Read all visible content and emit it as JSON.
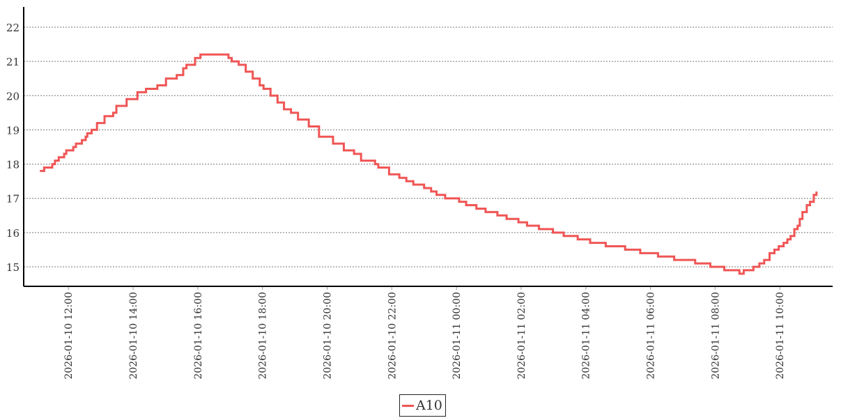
{
  "chart_data": {
    "type": "line",
    "step": true,
    "title": "",
    "xlabel": "",
    "ylabel": "",
    "xlim": [
      "2026-01-10 10:37",
      "2026-01-11 11:38"
    ],
    "ylim": [
      14.43,
      22.59
    ],
    "yticks": [
      15,
      16,
      17,
      18,
      19,
      20,
      21,
      22
    ],
    "xticks": [
      "2026-01-10 12:00",
      "2026-01-10 14:00",
      "2026-01-10 16:00",
      "2026-01-10 18:00",
      "2026-01-10 20:00",
      "2026-01-10 22:00",
      "2026-01-11 00:00",
      "2026-01-11 02:00",
      "2026-01-11 04:00",
      "2026-01-11 06:00",
      "2026-01-11 08:00",
      "2026-01-11 10:00"
    ],
    "grid": "horizontal dotted",
    "legend_position": "bottom-center",
    "series": [
      {
        "name": "A10",
        "color": "#f05555",
        "points": [
          [
            "2026-01-10 11:07",
            17.8
          ],
          [
            "2026-01-10 11:15",
            17.9
          ],
          [
            "2026-01-10 11:30",
            18.0
          ],
          [
            "2026-01-10 11:35",
            18.1
          ],
          [
            "2026-01-10 11:42",
            18.2
          ],
          [
            "2026-01-10 11:52",
            18.3
          ],
          [
            "2026-01-10 11:56",
            18.4
          ],
          [
            "2026-01-10 12:09",
            18.5
          ],
          [
            "2026-01-10 12:14",
            18.6
          ],
          [
            "2026-01-10 12:25",
            18.7
          ],
          [
            "2026-01-10 12:32",
            18.8
          ],
          [
            "2026-01-10 12:35",
            18.9
          ],
          [
            "2026-01-10 12:43",
            19.0
          ],
          [
            "2026-01-10 12:53",
            19.2
          ],
          [
            "2026-01-10 13:07",
            19.4
          ],
          [
            "2026-01-10 13:23",
            19.5
          ],
          [
            "2026-01-10 13:29",
            19.7
          ],
          [
            "2026-01-10 13:48",
            19.9
          ],
          [
            "2026-01-10 14:08",
            20.1
          ],
          [
            "2026-01-10 14:24",
            20.2
          ],
          [
            "2026-01-10 14:45",
            20.3
          ],
          [
            "2026-01-10 15:01",
            20.5
          ],
          [
            "2026-01-10 15:21",
            20.6
          ],
          [
            "2026-01-10 15:33",
            20.8
          ],
          [
            "2026-01-10 15:39",
            20.9
          ],
          [
            "2026-01-10 15:55",
            21.1
          ],
          [
            "2026-01-10 16:05",
            21.2
          ],
          [
            "2026-01-10 16:57",
            21.1
          ],
          [
            "2026-01-10 17:03",
            21.0
          ],
          [
            "2026-01-10 17:16",
            20.9
          ],
          [
            "2026-01-10 17:29",
            20.7
          ],
          [
            "2026-01-10 17:42",
            20.5
          ],
          [
            "2026-01-10 17:55",
            20.3
          ],
          [
            "2026-01-10 18:02",
            20.2
          ],
          [
            "2026-01-10 18:15",
            20.0
          ],
          [
            "2026-01-10 18:28",
            19.8
          ],
          [
            "2026-01-10 18:40",
            19.6
          ],
          [
            "2026-01-10 18:53",
            19.5
          ],
          [
            "2026-01-10 19:06",
            19.3
          ],
          [
            "2026-01-10 19:26",
            19.1
          ],
          [
            "2026-01-10 19:45",
            18.8
          ],
          [
            "2026-01-10 20:11",
            18.6
          ],
          [
            "2026-01-10 20:31",
            18.4
          ],
          [
            "2026-01-10 20:50",
            18.3
          ],
          [
            "2026-01-10 21:03",
            18.1
          ],
          [
            "2026-01-10 21:29",
            18.0
          ],
          [
            "2026-01-10 21:35",
            17.9
          ],
          [
            "2026-01-10 21:55",
            17.7
          ],
          [
            "2026-01-10 22:14",
            17.6
          ],
          [
            "2026-01-10 22:27",
            17.5
          ],
          [
            "2026-01-10 22:40",
            17.4
          ],
          [
            "2026-01-10 23:00",
            17.3
          ],
          [
            "2026-01-10 23:13",
            17.2
          ],
          [
            "2026-01-10 23:23",
            17.1
          ],
          [
            "2026-01-10 23:39",
            17.0
          ],
          [
            "2026-01-11 00:05",
            16.9
          ],
          [
            "2026-01-11 00:18",
            16.8
          ],
          [
            "2026-01-11 00:37",
            16.7
          ],
          [
            "2026-01-11 00:54",
            16.6
          ],
          [
            "2026-01-11 01:16",
            16.5
          ],
          [
            "2026-01-11 01:33",
            16.4
          ],
          [
            "2026-01-11 01:55",
            16.3
          ],
          [
            "2026-01-11 02:11",
            16.2
          ],
          [
            "2026-01-11 02:33",
            16.1
          ],
          [
            "2026-01-11 02:59",
            16.0
          ],
          [
            "2026-01-11 03:19",
            15.9
          ],
          [
            "2026-01-11 03:45",
            15.8
          ],
          [
            "2026-01-11 04:08",
            15.7
          ],
          [
            "2026-01-11 04:37",
            15.6
          ],
          [
            "2026-01-11 05:13",
            15.5
          ],
          [
            "2026-01-11 05:41",
            15.4
          ],
          [
            "2026-01-11 06:14",
            15.3
          ],
          [
            "2026-01-11 06:44",
            15.2
          ],
          [
            "2026-01-11 07:23",
            15.1
          ],
          [
            "2026-01-11 07:51",
            15.0
          ],
          [
            "2026-01-11 08:17",
            14.9
          ],
          [
            "2026-01-11 08:45",
            14.8
          ],
          [
            "2026-01-11 08:53",
            14.9
          ],
          [
            "2026-01-11 09:11",
            15.0
          ],
          [
            "2026-01-11 09:22",
            15.1
          ],
          [
            "2026-01-11 09:31",
            15.2
          ],
          [
            "2026-01-11 09:41",
            15.4
          ],
          [
            "2026-01-11 09:50",
            15.5
          ],
          [
            "2026-01-11 09:58",
            15.6
          ],
          [
            "2026-01-11 10:07",
            15.7
          ],
          [
            "2026-01-11 10:14",
            15.8
          ],
          [
            "2026-01-11 10:20",
            15.9
          ],
          [
            "2026-01-11 10:27",
            16.1
          ],
          [
            "2026-01-11 10:33",
            16.2
          ],
          [
            "2026-01-11 10:37",
            16.4
          ],
          [
            "2026-01-11 10:42",
            16.6
          ],
          [
            "2026-01-11 10:50",
            16.8
          ],
          [
            "2026-01-11 10:56",
            16.9
          ],
          [
            "2026-01-11 11:03",
            17.1
          ],
          [
            "2026-01-11 11:08",
            17.2
          ]
        ]
      }
    ]
  }
}
